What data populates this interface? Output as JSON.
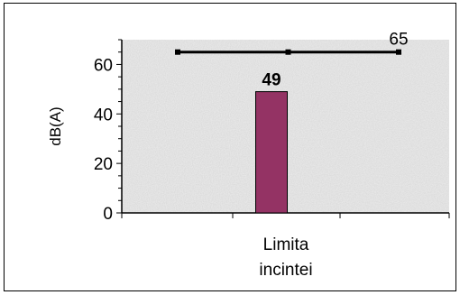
{
  "chart_data": {
    "type": "bar",
    "categories": [
      "Limita incintei"
    ],
    "category_label_lines": [
      "Limita",
      "incintei"
    ],
    "ylabel": "dB(A)",
    "ylim": [
      0,
      70
    ],
    "yticks": [
      "0",
      "20",
      "40",
      "60"
    ],
    "ytick_values": [
      0,
      20,
      40,
      60
    ],
    "bars": [
      {
        "category": "Limita incintei",
        "value": 49,
        "label": "49",
        "color": "#943364"
      }
    ],
    "limit_line": {
      "value": 65,
      "label": "65",
      "color": "#000000",
      "markers": 3
    },
    "plot_background": "speckled-gray",
    "grid": false,
    "legend": "none"
  }
}
